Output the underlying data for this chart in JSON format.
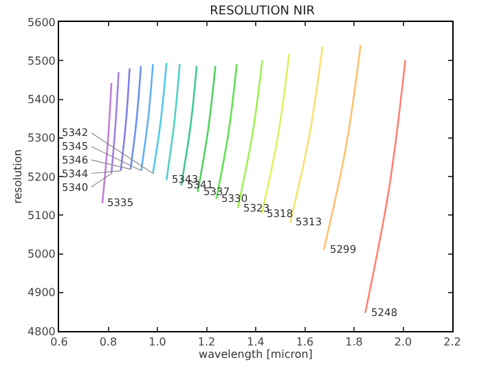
{
  "chart_data": {
    "type": "line",
    "title": "RESOLUTION NIR",
    "xlabel": "wavelength [micron]",
    "ylabel": "resolution",
    "xlim": [
      0.6,
      2.2
    ],
    "xticks": [
      0.6,
      0.8,
      {
        "value": 1.0,
        "label": "1.0"
      },
      1.2,
      1.4,
      1.6,
      1.8,
      {
        "value": 2.0,
        "label": "2.0"
      },
      2.2
    ],
    "ylim": [
      4800,
      5600
    ],
    "yticks": [
      4800,
      4900,
      5000,
      5100,
      5200,
      5300,
      5400,
      5500,
      5600
    ],
    "marker": "none",
    "line_style": "solid",
    "series": [
      {
        "color": "#c080d8",
        "x": [
          0.776,
          0.798,
          0.813
        ],
        "values": [
          5131,
          5286,
          5442
        ]
      },
      {
        "color": "#a080e0",
        "x": [
          0.813,
          0.83,
          0.842
        ],
        "values": [
          5208,
          5339,
          5470
        ]
      },
      {
        "color": "#8080e8",
        "x": [
          0.851,
          0.873,
          0.887
        ],
        "values": [
          5215,
          5348,
          5480
        ]
      },
      {
        "color": "#7090f0",
        "x": [
          0.891,
          0.916,
          0.933
        ],
        "values": [
          5219,
          5352,
          5486
        ]
      },
      {
        "color": "#60b0f0",
        "x": [
          0.934,
          0.963,
          0.982
        ],
        "values": [
          5215,
          5353,
          5491
        ]
      },
      {
        "color": "#50c8e8",
        "x": [
          0.982,
          1.015,
          1.037
        ],
        "values": [
          5208,
          5351,
          5494
        ]
      },
      {
        "color": "#50d0c8",
        "x": [
          1.037,
          1.069,
          1.091
        ],
        "values": [
          5191,
          5341,
          5491
        ]
      },
      {
        "color": "#40c890",
        "x": [
          1.097,
          1.135,
          1.16
        ],
        "values": [
          5177,
          5332,
          5486
        ]
      },
      {
        "color": "#50d060",
        "x": [
          1.164,
          1.207,
          1.236
        ],
        "values": [
          5160,
          5323,
          5486
        ]
      },
      {
        "color": "#60e050",
        "x": [
          1.24,
          1.29,
          1.323
        ],
        "values": [
          5142,
          5316,
          5491
        ]
      },
      {
        "color": "#a0f050",
        "x": [
          1.327,
          1.387,
          1.427
        ],
        "values": [
          5118,
          5310,
          5501
        ]
      },
      {
        "color": "#e0f060",
        "x": [
          1.425,
          1.492,
          1.536
        ],
        "values": [
          5104,
          5310,
          5517
        ]
      },
      {
        "color": "#f8e070",
        "x": [
          1.54,
          1.619,
          1.672
        ],
        "values": [
          5080,
          5308,
          5536
        ]
      },
      {
        "color": "#ffc070",
        "x": [
          1.677,
          1.767,
          1.827
        ],
        "values": [
          5010,
          5275,
          5540
        ]
      },
      {
        "color": "#ff8070",
        "x": [
          1.846,
          1.944,
          2.009
        ],
        "values": [
          4847,
          5174,
          5501
        ]
      }
    ],
    "annotations": [
      {
        "text": "5335",
        "x": 0.776,
        "y": 5131
      },
      {
        "text": "5340",
        "x": 0.813,
        "y": 5208
      },
      {
        "text": "5344",
        "x": 0.851,
        "y": 5215
      },
      {
        "text": "5346",
        "x": 0.891,
        "y": 5219
      },
      {
        "text": "5345",
        "x": 0.934,
        "y": 5215
      },
      {
        "text": "5342",
        "x": 0.982,
        "y": 5208
      },
      {
        "text": "5343",
        "x": 1.037,
        "y": 5191
      },
      {
        "text": "5341",
        "x": 1.097,
        "y": 5177
      },
      {
        "text": "5337",
        "x": 1.164,
        "y": 5160
      },
      {
        "text": "5330",
        "x": 1.24,
        "y": 5142
      },
      {
        "text": "5323",
        "x": 1.327,
        "y": 5118
      },
      {
        "text": "5318",
        "x": 1.425,
        "y": 5104
      },
      {
        "text": "5313",
        "x": 1.54,
        "y": 5080
      },
      {
        "text": "5299",
        "x": 1.677,
        "y": 5010
      },
      {
        "text": "5248",
        "x": 1.846,
        "y": 4847
      }
    ]
  }
}
